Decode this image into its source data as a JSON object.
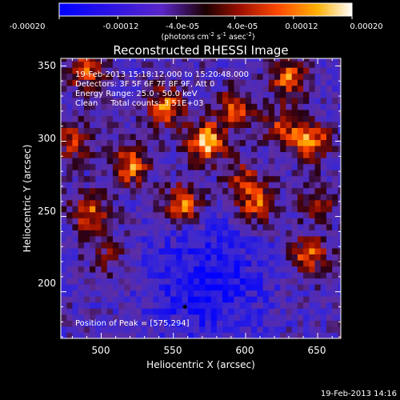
{
  "colorbar": {
    "tick_labels": [
      "-0.00020",
      "-0.00012",
      "-4.0e-05",
      "4.0e-05",
      "0.00012",
      "0.00020"
    ],
    "tick_values": [
      -0.0002,
      -0.00012,
      -4e-05,
      4e-05,
      0.00012,
      0.0002
    ],
    "range": [
      -0.0002,
      0.0002
    ],
    "unit_main": "(photons cm",
    "unit_exp1": "-2",
    "unit_mid": " s",
    "unit_exp2": "-1",
    "unit_tail": " asec",
    "unit_exp3": "-2",
    "unit_close": ")",
    "colors": [
      "#0000ff",
      "#5020c0",
      "#200000",
      "#a00000",
      "#ff4000",
      "#ffa000",
      "#ffffff"
    ]
  },
  "chart_data": {
    "type": "heatmap",
    "title": "Reconstructed RHESSI Image",
    "xlabel": "Heliocentric X (arcsec)",
    "ylabel": "Heliocentric Y (arcsec)",
    "xlim": [
      472,
      666
    ],
    "ylim": [
      169,
      355
    ],
    "xticks": [
      500,
      550,
      600,
      650
    ],
    "yticks": [
      200,
      250,
      300,
      350
    ],
    "annotations": [
      "19-Feb-2013 15:18:12.000 to 15:20:48.000",
      "Detectors: 3F 5F 6F 7F 8F 9F, Att 0",
      "Energy Range: 25.0 - 50.0 keV",
      "Clean     Total counts: 3.51E+03",
      "Position of Peak = [575,294]"
    ],
    "peak": [
      575,
      294
    ],
    "timestamp": "19-Feb-2013 14:16",
    "sources": [
      {
        "x": 573,
        "y": 300,
        "v": 0.00019
      },
      {
        "x": 556,
        "y": 258,
        "v": 0.00016
      },
      {
        "x": 520,
        "y": 284,
        "v": 0.00015
      },
      {
        "x": 492,
        "y": 253,
        "v": 0.00013
      },
      {
        "x": 489,
        "y": 348,
        "v": 0.00013
      },
      {
        "x": 545,
        "y": 323,
        "v": 0.00015
      },
      {
        "x": 593,
        "y": 322,
        "v": 0.00012
      },
      {
        "x": 630,
        "y": 343,
        "v": 0.00014
      },
      {
        "x": 645,
        "y": 300,
        "v": 0.00016
      },
      {
        "x": 608,
        "y": 258,
        "v": 0.00013
      },
      {
        "x": 644,
        "y": 225,
        "v": 0.00013
      },
      {
        "x": 598,
        "y": 275,
        "v": 9e-05
      },
      {
        "x": 625,
        "y": 310,
        "v": 0.0001
      },
      {
        "x": 480,
        "y": 300,
        "v": 0.00011
      },
      {
        "x": 650,
        "y": 260,
        "v": 8e-05
      },
      {
        "x": 505,
        "y": 225,
        "v": 7e-05
      }
    ],
    "negative_region": {
      "x": 573,
      "y": 205,
      "v": -0.00013
    }
  }
}
